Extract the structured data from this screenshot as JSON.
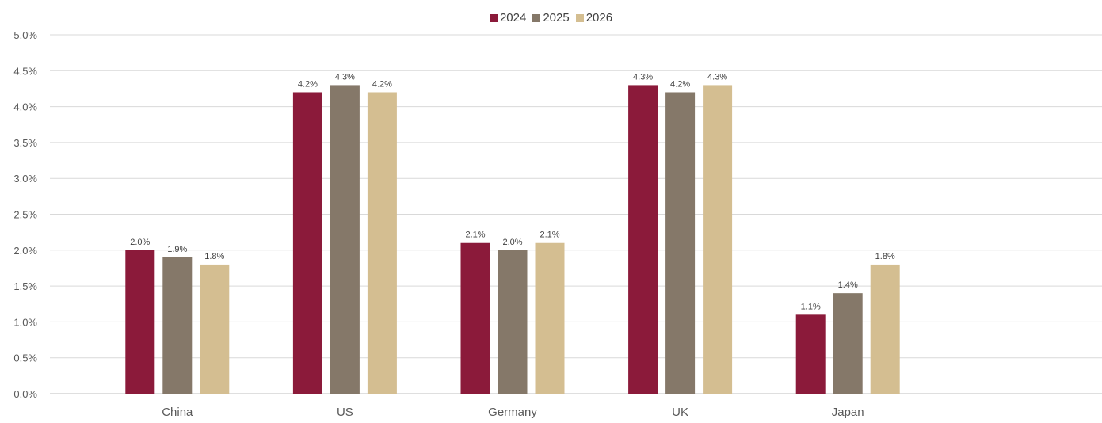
{
  "chart_data": {
    "type": "bar",
    "categories": [
      "China",
      "US",
      "Germany",
      "UK",
      "Japan"
    ],
    "series": [
      {
        "name": "2024",
        "color": "#8B1A3A",
        "values": [
          2.0,
          4.2,
          2.1,
          4.3,
          1.1
        ]
      },
      {
        "name": "2025",
        "color": "#857869",
        "values": [
          1.9,
          4.3,
          2.0,
          4.2,
          1.4
        ]
      },
      {
        "name": "2026",
        "color": "#D4BE91",
        "values": [
          1.8,
          4.2,
          2.1,
          4.3,
          1.8
        ]
      }
    ],
    "ylim": [
      0,
      5.0
    ],
    "yticks": [
      "0.0%",
      "0.5%",
      "1.0%",
      "1.5%",
      "2.0%",
      "2.5%",
      "3.0%",
      "3.5%",
      "4.0%",
      "4.5%",
      "5.0%"
    ],
    "value_suffix": "%",
    "grid": true,
    "legend_position": "top-center"
  }
}
